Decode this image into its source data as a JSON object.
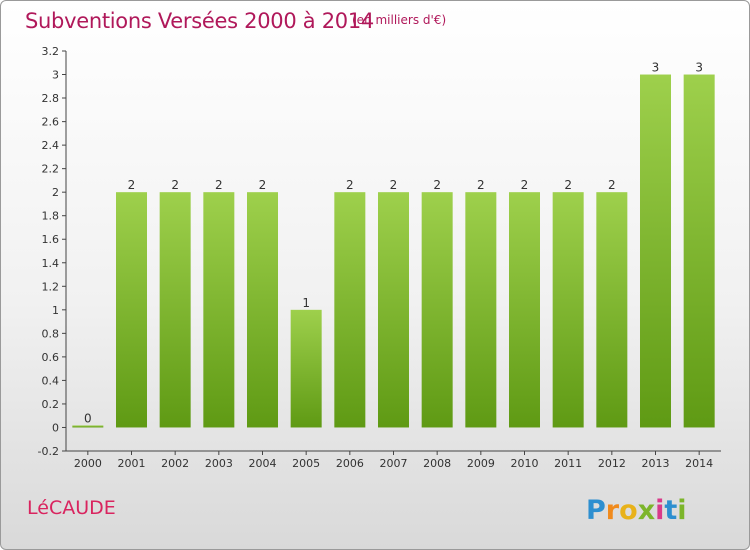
{
  "chart_data": {
    "type": "bar",
    "title": "Subventions Versées 2000 à 2014",
    "unit_label": "(en milliers d'€)",
    "categories": [
      "2000",
      "2001",
      "2002",
      "2003",
      "2004",
      "2005",
      "2006",
      "2007",
      "2008",
      "2009",
      "2010",
      "2011",
      "2012",
      "2013",
      "2014"
    ],
    "values": [
      0,
      2,
      2,
      2,
      2,
      1,
      2,
      2,
      2,
      2,
      2,
      2,
      2,
      3,
      3
    ],
    "data_labels": [
      "0",
      "2",
      "2",
      "2",
      "2",
      "1",
      "2",
      "2",
      "2",
      "2",
      "2",
      "2",
      "2",
      "3",
      "3"
    ],
    "ylim": [
      -0.2,
      3.2
    ],
    "yticks": [
      -0.2,
      0,
      0.2,
      0.4,
      0.6,
      0.8,
      1,
      1.2,
      1.4,
      1.6,
      1.8,
      2,
      2.2,
      2.4,
      2.6,
      2.8,
      3,
      3.2
    ],
    "ytick_labels": [
      "-0.2",
      "0",
      "0.2",
      "0.4",
      "0.6",
      "0.8",
      "1",
      "1.2",
      "1.4",
      "1.6",
      "1.8",
      "2",
      "2.2",
      "2.4",
      "2.6",
      "2.8",
      "3",
      "3.2"
    ],
    "grid": false,
    "colors": {
      "bar_top": "#9ed04c",
      "bar_bottom": "#5f9a14",
      "title": "#b0185a"
    }
  },
  "footer": {
    "commune": "LéCAUDE",
    "logo_text": "Proxiti"
  }
}
